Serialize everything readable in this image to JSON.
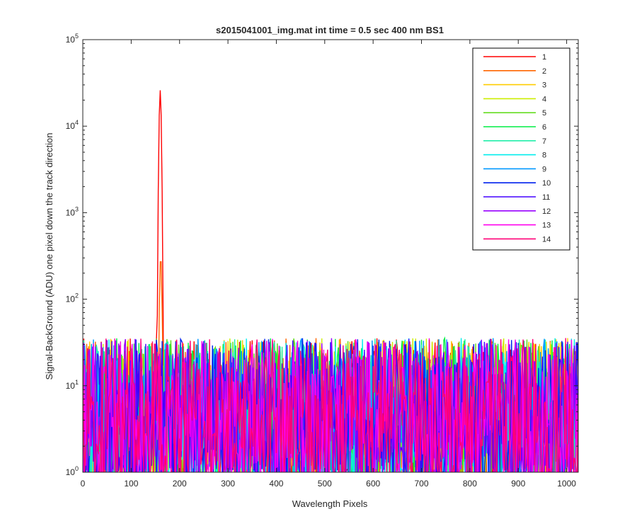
{
  "chart_data": {
    "type": "line",
    "title": "s2015041001_img.mat int time = 0.5 sec  400 nm BS1",
    "xlabel": "Wavelength Pixels",
    "ylabel": "Signal-BackGround (ADU) one pixel down the track direction",
    "xlim": [
      0,
      1024
    ],
    "ylim": [
      1,
      100000
    ],
    "yscale": "log",
    "grid": false,
    "legend_position": "top-right",
    "x_ticks": [
      0,
      100,
      200,
      300,
      400,
      500,
      600,
      700,
      800,
      900,
      1000
    ],
    "y_ticks": [
      {
        "value": 1,
        "base": "10",
        "exp": "0"
      },
      {
        "value": 10,
        "base": "10",
        "exp": "1"
      },
      {
        "value": 100,
        "base": "10",
        "exp": "2"
      },
      {
        "value": 1000,
        "base": "10",
        "exp": "3"
      },
      {
        "value": 10000,
        "base": "10",
        "exp": "4"
      },
      {
        "value": 100000,
        "base": "10",
        "exp": "5"
      }
    ],
    "x_range": {
      "start": 0,
      "end": 1024
    },
    "noise_floor": 1,
    "noise_typical_max": 30,
    "series": [
      {
        "name": "1",
        "color": "#ff0000",
        "peak": {
          "x": 160,
          "y": 26000
        }
      },
      {
        "name": "2",
        "color": "#ff6600",
        "peak": {
          "x": 161,
          "y": 320
        }
      },
      {
        "name": "3",
        "color": "#ffcc00",
        "peak": null
      },
      {
        "name": "4",
        "color": "#ccee00",
        "peak": null
      },
      {
        "name": "5",
        "color": "#66dd22",
        "peak": null
      },
      {
        "name": "6",
        "color": "#00ee44",
        "peak": null
      },
      {
        "name": "7",
        "color": "#22eeaa",
        "peak": null
      },
      {
        "name": "8",
        "color": "#00eeee",
        "peak": null
      },
      {
        "name": "9",
        "color": "#0099ff",
        "peak": null
      },
      {
        "name": "10",
        "color": "#0022ee",
        "peak": null
      },
      {
        "name": "11",
        "color": "#4400ff",
        "peak": null
      },
      {
        "name": "12",
        "color": "#9900ff",
        "peak": null
      },
      {
        "name": "13",
        "color": "#ff00ee",
        "peak": null
      },
      {
        "name": "14",
        "color": "#ff0077",
        "peak": null
      }
    ]
  }
}
